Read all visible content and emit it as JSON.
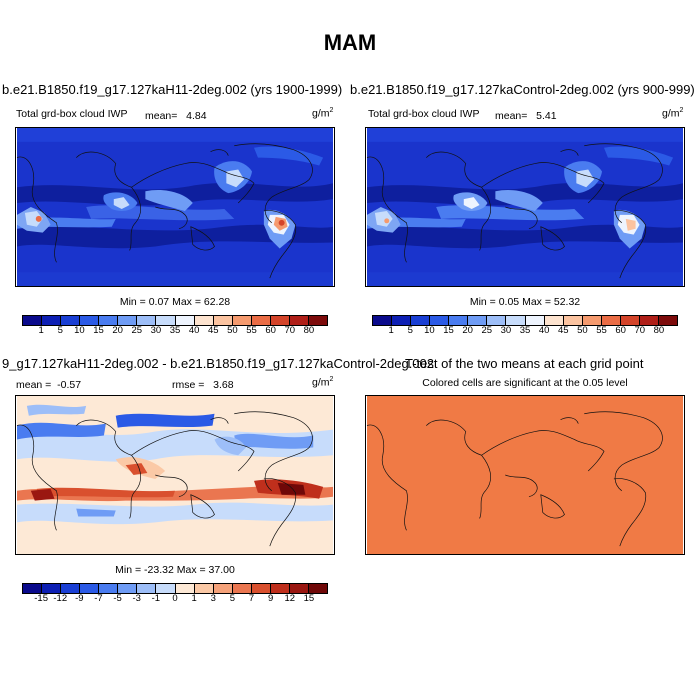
{
  "main_title": "MAM",
  "panels": {
    "p1": {
      "title": "b.e21.B1850.f19_g17.127kaH11-2deg.002 (yrs 1900-1999)",
      "variable": "Total grd-box cloud IWP",
      "mean_label": "mean=",
      "mean_value": "4.84",
      "unit_base": "g/m",
      "unit_exp": "2",
      "minmax": "Min =  0.07 Max =  62.28"
    },
    "p2": {
      "title": "b.e21.B1850.f19_g17.127kaControl-2deg.002 (yrs 900-999)",
      "variable": "Total grd-box cloud IWP",
      "mean_label": "mean=",
      "mean_value": "5.41",
      "unit_base": "g/m",
      "unit_exp": "2",
      "minmax": "Min =  0.05 Max =  52.32"
    },
    "p3": {
      "title": "9_g17.127kaH11-2deg.002 - b.e21.B1850.f19_g17.127kaControl-2deg.002",
      "mean_label": "mean =",
      "mean_value": "-0.57",
      "rmse_label": "rmse =",
      "rmse_value": "3.68",
      "unit_base": "g/m",
      "unit_exp": "2",
      "minmax": "Min = -23.32 Max =  37.00"
    },
    "p4": {
      "title": "T-test of the two means at each grid point",
      "subtitle": "Colored cells are significant at the 0.05 level"
    }
  },
  "colorbar_abs": {
    "ticks": [
      "1",
      "5",
      "10",
      "15",
      "20",
      "25",
      "30",
      "35",
      "40",
      "45",
      "50",
      "55",
      "60",
      "70",
      "80"
    ],
    "colors": [
      "#0a0a8c",
      "#0d1fb4",
      "#1a3fd4",
      "#2b5ae6",
      "#4a7cf0",
      "#6f9cf5",
      "#9dbef8",
      "#c7dcfb",
      "#eef4fe",
      "#fde3cf",
      "#fbc3a0",
      "#f59a6e",
      "#ea6c45",
      "#d4442a",
      "#b01f18",
      "#7d0b0b"
    ]
  },
  "colorbar_diff": {
    "ticks": [
      "-15",
      "-12",
      "-9",
      "-7",
      "-5",
      "-3",
      "-1",
      "0",
      "1",
      "3",
      "5",
      "7",
      "9",
      "12",
      "15"
    ],
    "colors": [
      "#0a0a8c",
      "#0d1fb4",
      "#1a3fd4",
      "#2b5ae6",
      "#4a7cf0",
      "#6f9cf5",
      "#9dbef8",
      "#c7dcfb",
      "#fde9d6",
      "#fbc9a6",
      "#f5a27a",
      "#ea7650",
      "#d9502e",
      "#bf2f1c",
      "#9a1711",
      "#700808"
    ]
  },
  "colors": {
    "ice_background": "#1a34cc",
    "diff_background": "#fde9d6",
    "ttest_fill": "#f07a45"
  }
}
